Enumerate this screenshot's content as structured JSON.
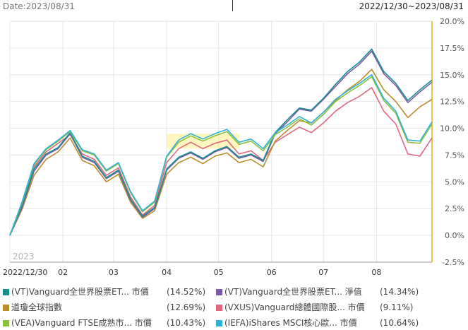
{
  "header": {
    "date_label": "Date:2023/08/31",
    "range_label": "2022/12/30~2023/08/31"
  },
  "colors": {
    "axis_right": "#e8c24a",
    "grid": "#e6e6e6",
    "highlight_band": "#fff6b8"
  },
  "chart_data": {
    "type": "line",
    "year_watermark": "2023",
    "x_ticks": [
      "2022/12/30",
      "02",
      "03",
      "04",
      "05",
      "06",
      "07",
      "08"
    ],
    "y_ticks": [
      "20.0%",
      "17.5%",
      "15.0%",
      "12.5%",
      "10.0%",
      "7.5%",
      "5.0%",
      "2.5%",
      "0.0%",
      "-2.5%"
    ],
    "ylim": [
      -2.5,
      20.0
    ],
    "ylabel_unit": "%",
    "grid": true,
    "highlight_range": [
      "04",
      "05"
    ],
    "x": [
      "2022/12/30",
      "01/06",
      "01/13",
      "01/20",
      "01/27",
      "02/03",
      "02/10",
      "02/17",
      "02/24",
      "03/03",
      "03/10",
      "03/17",
      "03/24",
      "03/31",
      "04/07",
      "04/14",
      "04/21",
      "04/28",
      "05/05",
      "05/12",
      "05/19",
      "05/26",
      "06/02",
      "06/09",
      "06/16",
      "06/23",
      "06/30",
      "07/07",
      "07/14",
      "07/21",
      "07/28",
      "08/04",
      "08/11",
      "08/18",
      "08/25",
      "08/31"
    ],
    "series": [
      {
        "name": "(VT)Vanguard全世界股票ET... 市價",
        "legend_value": "(14.52%)",
        "color": "#1b8f8f",
        "values": [
          0,
          2.8,
          6.2,
          7.6,
          8.2,
          9.6,
          7.4,
          6.9,
          5.4,
          6.1,
          3.4,
          1.8,
          2.6,
          6.2,
          7.3,
          7.8,
          7.2,
          7.9,
          8.3,
          7.3,
          7.6,
          7.0,
          9.6,
          10.8,
          11.9,
          11.7,
          12.8,
          14.1,
          15.3,
          16.2,
          17.4,
          15.3,
          14.2,
          12.6,
          13.6,
          14.5
        ]
      },
      {
        "name": "(VT)Vanguard全世界股票ET... 淨值",
        "legend_value": "(14.34%)",
        "color": "#7c5aa6",
        "values": [
          0,
          2.6,
          6.0,
          7.5,
          8.1,
          9.5,
          7.3,
          6.8,
          5.3,
          6.0,
          3.3,
          1.7,
          2.5,
          6.1,
          7.2,
          7.7,
          7.1,
          7.8,
          8.2,
          7.2,
          7.5,
          6.9,
          9.5,
          10.6,
          11.8,
          11.6,
          12.7,
          13.9,
          15.1,
          16.0,
          17.2,
          15.1,
          14.0,
          12.4,
          13.4,
          14.3
        ]
      },
      {
        "name": "道瓊全球指數",
        "legend_value": "(12.69%)",
        "color": "#b98c2e",
        "values": [
          0,
          2.4,
          5.6,
          7.1,
          7.8,
          9.1,
          7.0,
          6.5,
          5.0,
          5.7,
          3.1,
          1.6,
          2.3,
          5.7,
          6.8,
          7.3,
          6.7,
          7.4,
          7.7,
          6.8,
          7.1,
          6.4,
          8.8,
          9.8,
          10.7,
          10.5,
          11.5,
          12.6,
          13.6,
          14.4,
          15.5,
          13.6,
          12.5,
          11.0,
          12.0,
          12.7
        ]
      },
      {
        "name": "(VXUS)Vanguard總體國際股... 市價",
        "legend_value": "(9.11%)",
        "color": "#e0677f",
        "values": [
          0,
          2.9,
          6.4,
          7.8,
          8.6,
          9.4,
          7.6,
          7.1,
          5.6,
          6.3,
          3.6,
          1.9,
          2.8,
          6.8,
          8.1,
          8.7,
          8.1,
          8.6,
          8.9,
          7.6,
          7.9,
          7.0,
          8.7,
          9.4,
          10.1,
          9.6,
          10.5,
          11.6,
          12.4,
          13.0,
          13.8,
          11.6,
          10.4,
          7.6,
          7.4,
          9.1
        ]
      },
      {
        "name": "(VEA)Vanguard FTSE成熟市... 市價",
        "legend_value": "(10.43%)",
        "color": "#8dbf3f",
        "values": [
          0,
          3.0,
          6.6,
          8.0,
          8.8,
          9.7,
          7.9,
          7.5,
          6.0,
          6.7,
          4.0,
          2.2,
          3.1,
          7.3,
          8.7,
          9.3,
          8.8,
          9.3,
          9.7,
          8.5,
          8.8,
          7.9,
          9.4,
          10.1,
          10.9,
          10.3,
          11.3,
          12.5,
          13.3,
          14.0,
          14.8,
          12.6,
          11.4,
          8.7,
          8.6,
          10.4
        ]
      },
      {
        "name": "(IEFA)iShares MSCI核心歐... 市價",
        "legend_value": "(10.64%)",
        "color": "#2fb2d6",
        "values": [
          0,
          3.1,
          6.7,
          8.1,
          8.9,
          9.8,
          8.0,
          7.6,
          6.1,
          6.8,
          4.1,
          2.3,
          3.2,
          7.4,
          8.9,
          9.5,
          9.0,
          9.5,
          9.9,
          8.7,
          9.0,
          8.1,
          9.6,
          10.3,
          11.1,
          10.5,
          11.5,
          12.7,
          13.5,
          14.2,
          15.0,
          12.8,
          11.6,
          8.9,
          8.8,
          10.6
        ]
      }
    ]
  }
}
